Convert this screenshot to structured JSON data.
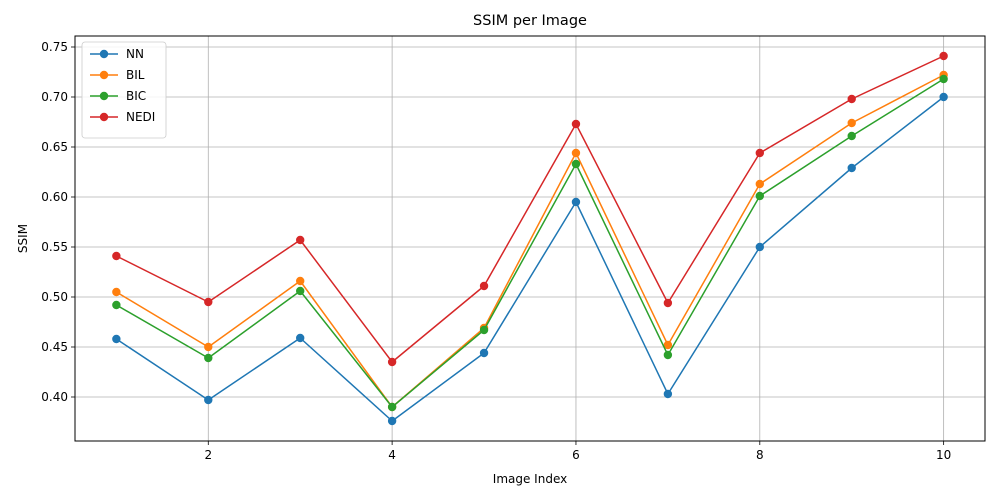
{
  "chart_data": {
    "type": "line",
    "title": "SSIM per Image",
    "xlabel": "Image Index",
    "ylabel": "SSIM",
    "xlim": [
      0.55,
      10.45
    ],
    "ylim": [
      0.356,
      0.761
    ],
    "x": [
      1,
      2,
      3,
      4,
      5,
      6,
      7,
      8,
      9,
      10
    ],
    "xticks": [
      2,
      4,
      6,
      8,
      10
    ],
    "xtick_labels": [
      "2",
      "4",
      "6",
      "8",
      "10"
    ],
    "yticks": [
      0.4,
      0.45,
      0.5,
      0.55,
      0.6,
      0.65,
      0.7,
      0.75
    ],
    "ytick_labels": [
      "0.40",
      "0.45",
      "0.50",
      "0.55",
      "0.60",
      "0.65",
      "0.70",
      "0.75"
    ],
    "grid": true,
    "legend_position": "top-left",
    "series": [
      {
        "name": "NN",
        "color": "#1f77b4",
        "values": [
          0.458,
          0.397,
          0.459,
          0.376,
          0.444,
          0.595,
          0.403,
          0.55,
          0.629,
          0.7
        ]
      },
      {
        "name": "BIL",
        "color": "#ff7f0e",
        "values": [
          0.505,
          0.45,
          0.516,
          0.39,
          0.469,
          0.644,
          0.452,
          0.613,
          0.674,
          0.722
        ]
      },
      {
        "name": "BIC",
        "color": "#2ca02c",
        "values": [
          0.492,
          0.439,
          0.506,
          0.39,
          0.467,
          0.633,
          0.442,
          0.601,
          0.661,
          0.718
        ]
      },
      {
        "name": "NEDI",
        "color": "#d62728",
        "values": [
          0.541,
          0.495,
          0.557,
          0.435,
          0.511,
          0.673,
          0.494,
          0.644,
          0.698,
          0.741
        ]
      }
    ]
  }
}
